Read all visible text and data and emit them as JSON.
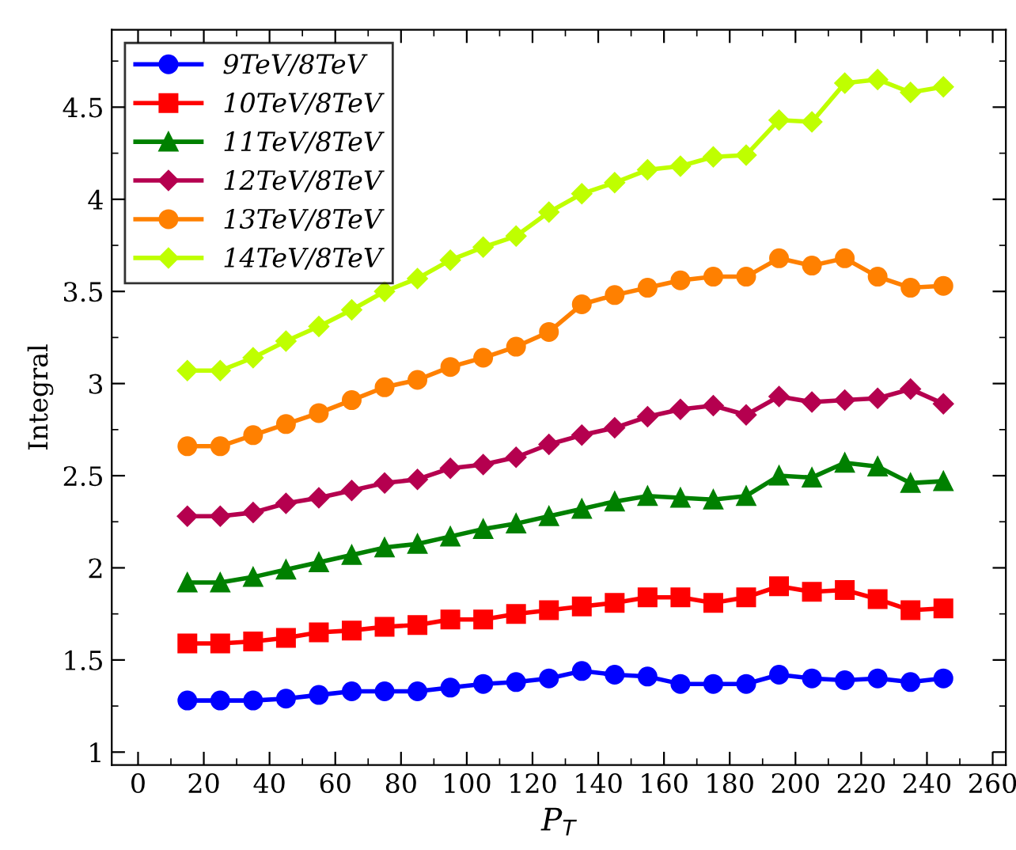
{
  "chart_data": {
    "type": "line",
    "xlabel": "P$_{T}$",
    "ylabel": "Integral",
    "x": [
      15,
      25,
      35,
      45,
      55,
      65,
      75,
      85,
      95,
      105,
      115,
      125,
      135,
      145,
      155,
      165,
      175,
      185,
      195,
      205,
      215,
      225,
      235,
      245
    ],
    "series": [
      {
        "name": "9TeV/8TeV",
        "color": "#0000ff",
        "marker": "circle",
        "values": [
          1.28,
          1.28,
          1.28,
          1.29,
          1.31,
          1.33,
          1.33,
          1.33,
          1.35,
          1.37,
          1.38,
          1.4,
          1.44,
          1.42,
          1.41,
          1.37,
          1.37,
          1.37,
          1.42,
          1.4,
          1.39,
          1.4,
          1.38,
          1.4
        ]
      },
      {
        "name": "10TeV/8TeV",
        "color": "#ff0000",
        "marker": "square",
        "values": [
          1.59,
          1.59,
          1.6,
          1.62,
          1.65,
          1.66,
          1.68,
          1.69,
          1.72,
          1.72,
          1.75,
          1.77,
          1.79,
          1.81,
          1.84,
          1.84,
          1.81,
          1.84,
          1.9,
          1.87,
          1.88,
          1.83,
          1.77,
          1.78
        ]
      },
      {
        "name": "11TeV/8TeV",
        "color": "#008000",
        "marker": "triangle",
        "values": [
          1.92,
          1.92,
          1.95,
          1.99,
          2.03,
          2.07,
          2.11,
          2.13,
          2.17,
          2.21,
          2.24,
          2.28,
          2.32,
          2.36,
          2.39,
          2.38,
          2.37,
          2.39,
          2.5,
          2.49,
          2.57,
          2.55,
          2.46,
          2.47
        ]
      },
      {
        "name": "12TeV/8TeV",
        "color": "#b5004f",
        "marker": "diamond",
        "values": [
          2.28,
          2.28,
          2.3,
          2.35,
          2.38,
          2.42,
          2.46,
          2.48,
          2.54,
          2.56,
          2.6,
          2.67,
          2.72,
          2.76,
          2.82,
          2.86,
          2.88,
          2.83,
          2.93,
          2.9,
          2.91,
          2.92,
          2.97,
          2.89
        ]
      },
      {
        "name": "13TeV/8TeV",
        "color": "#ff8000",
        "marker": "circle",
        "values": [
          2.66,
          2.66,
          2.72,
          2.78,
          2.84,
          2.91,
          2.98,
          3.02,
          3.09,
          3.14,
          3.2,
          3.28,
          3.43,
          3.48,
          3.52,
          3.56,
          3.58,
          3.58,
          3.68,
          3.64,
          3.68,
          3.58,
          3.52,
          3.53
        ]
      },
      {
        "name": "14TeV/8TeV",
        "color": "#bfff00",
        "marker": "diamond",
        "values": [
          3.07,
          3.07,
          3.14,
          3.23,
          3.31,
          3.4,
          3.5,
          3.57,
          3.67,
          3.74,
          3.8,
          3.93,
          4.03,
          4.09,
          4.16,
          4.18,
          4.23,
          4.24,
          4.43,
          4.42,
          4.63,
          4.65,
          4.58,
          4.61
        ]
      }
    ],
    "xlim": [
      -8,
      264
    ],
    "ylim": [
      0.93,
      4.92
    ],
    "xticks": [
      0,
      20,
      40,
      60,
      80,
      100,
      120,
      140,
      160,
      180,
      200,
      220,
      240,
      260
    ],
    "yticks": [
      1,
      1.5,
      2,
      2.5,
      3,
      3.5,
      4,
      4.5
    ],
    "grid": false,
    "legend": "top left"
  }
}
